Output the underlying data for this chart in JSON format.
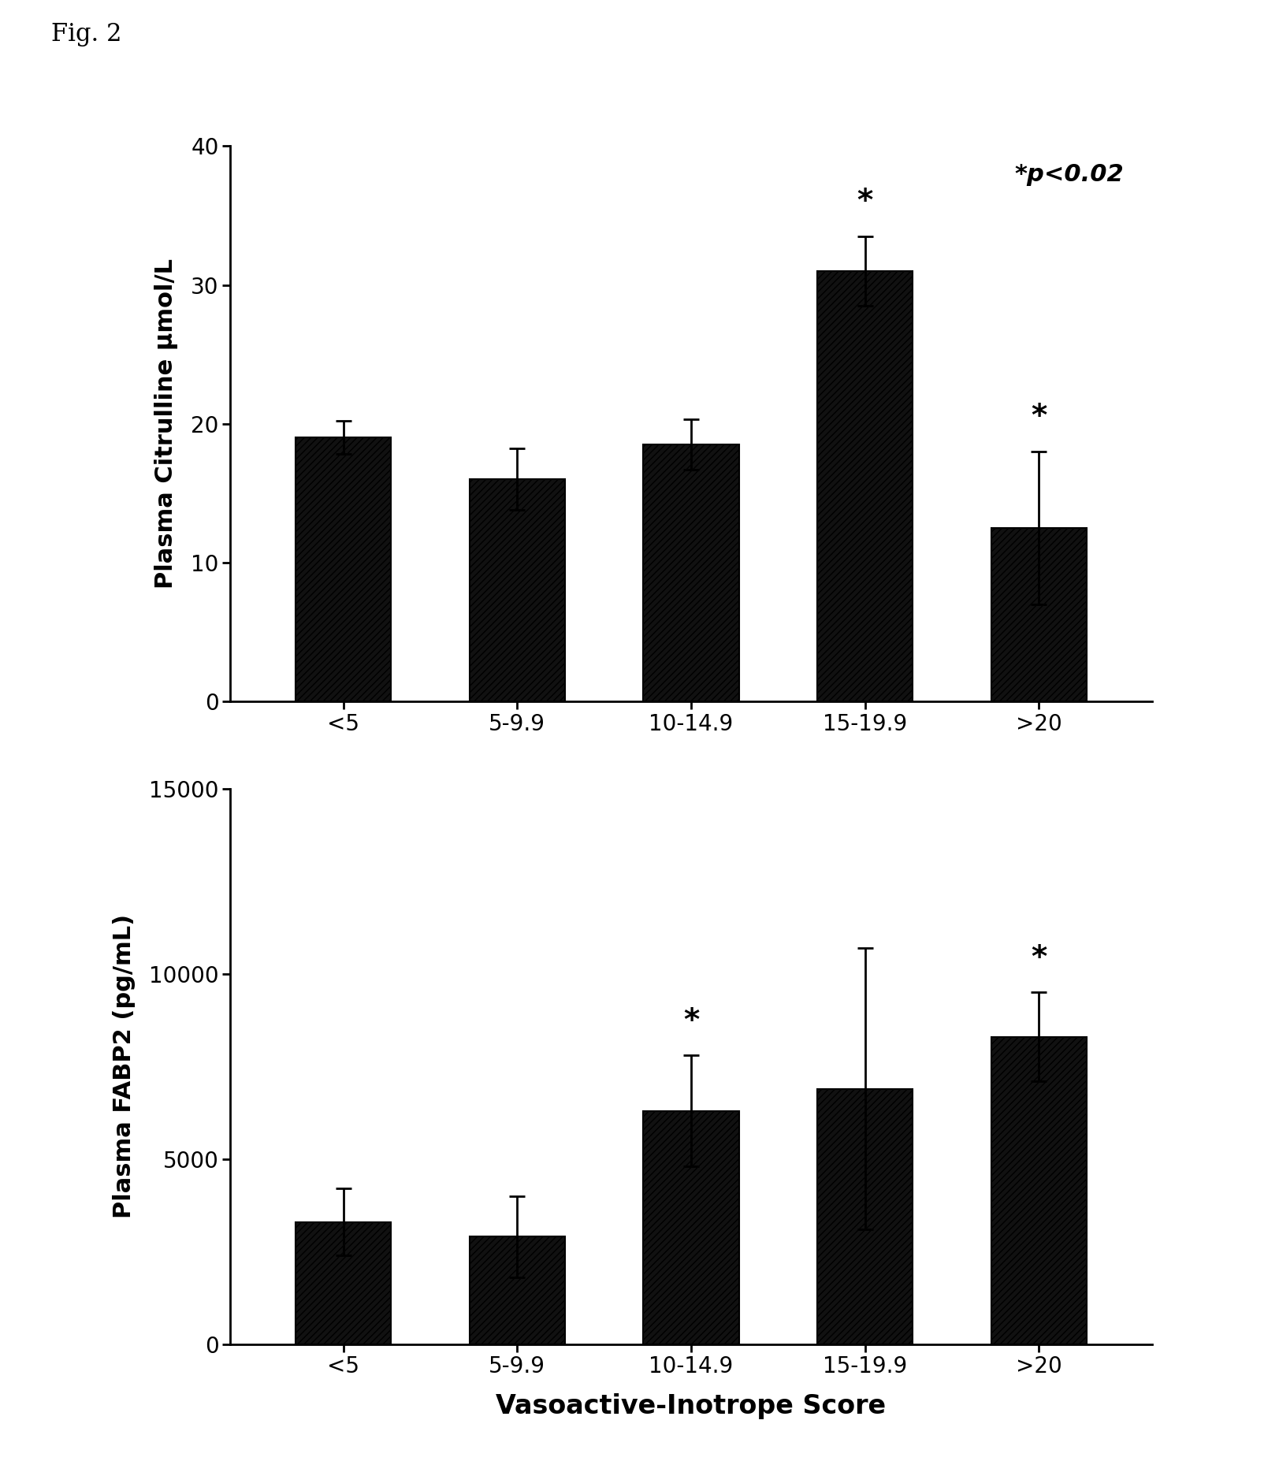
{
  "fig_label": "Fig. 2",
  "categories": [
    "<5",
    "5-9.9",
    "10-14.9",
    "15-19.9",
    ">20"
  ],
  "top_chart": {
    "ylabel": "Plasma Citrulline μmol/L",
    "values": [
      19.0,
      16.0,
      18.5,
      31.0,
      12.5
    ],
    "errors": [
      1.2,
      2.2,
      1.8,
      2.5,
      5.5
    ],
    "ylim": [
      0,
      40
    ],
    "yticks": [
      0,
      10,
      20,
      30,
      40
    ],
    "sig_markers": [
      null,
      null,
      null,
      "*",
      "*"
    ],
    "annotation": "*p<0.02"
  },
  "bottom_chart": {
    "ylabel": "Plasma FABP2 (pg/mL)",
    "values": [
      3300,
      2900,
      6300,
      6900,
      8300
    ],
    "errors": [
      900,
      1100,
      1500,
      3800,
      1200
    ],
    "ylim": [
      0,
      15000
    ],
    "yticks": [
      0,
      5000,
      10000,
      15000
    ],
    "sig_markers": [
      null,
      null,
      "*",
      null,
      "*"
    ],
    "annotation": null
  },
  "xlabel": "Vasoactive-Inotrope Score",
  "bar_color": "#111111",
  "hatch_pattern": "////",
  "hatch_color": "#555555",
  "bar_width": 0.55,
  "background_color": "#ffffff",
  "tick_fontsize": 20,
  "label_fontsize": 22,
  "sig_fontsize": 28,
  "annotation_fontsize": 22,
  "fig_label_fontsize": 22
}
